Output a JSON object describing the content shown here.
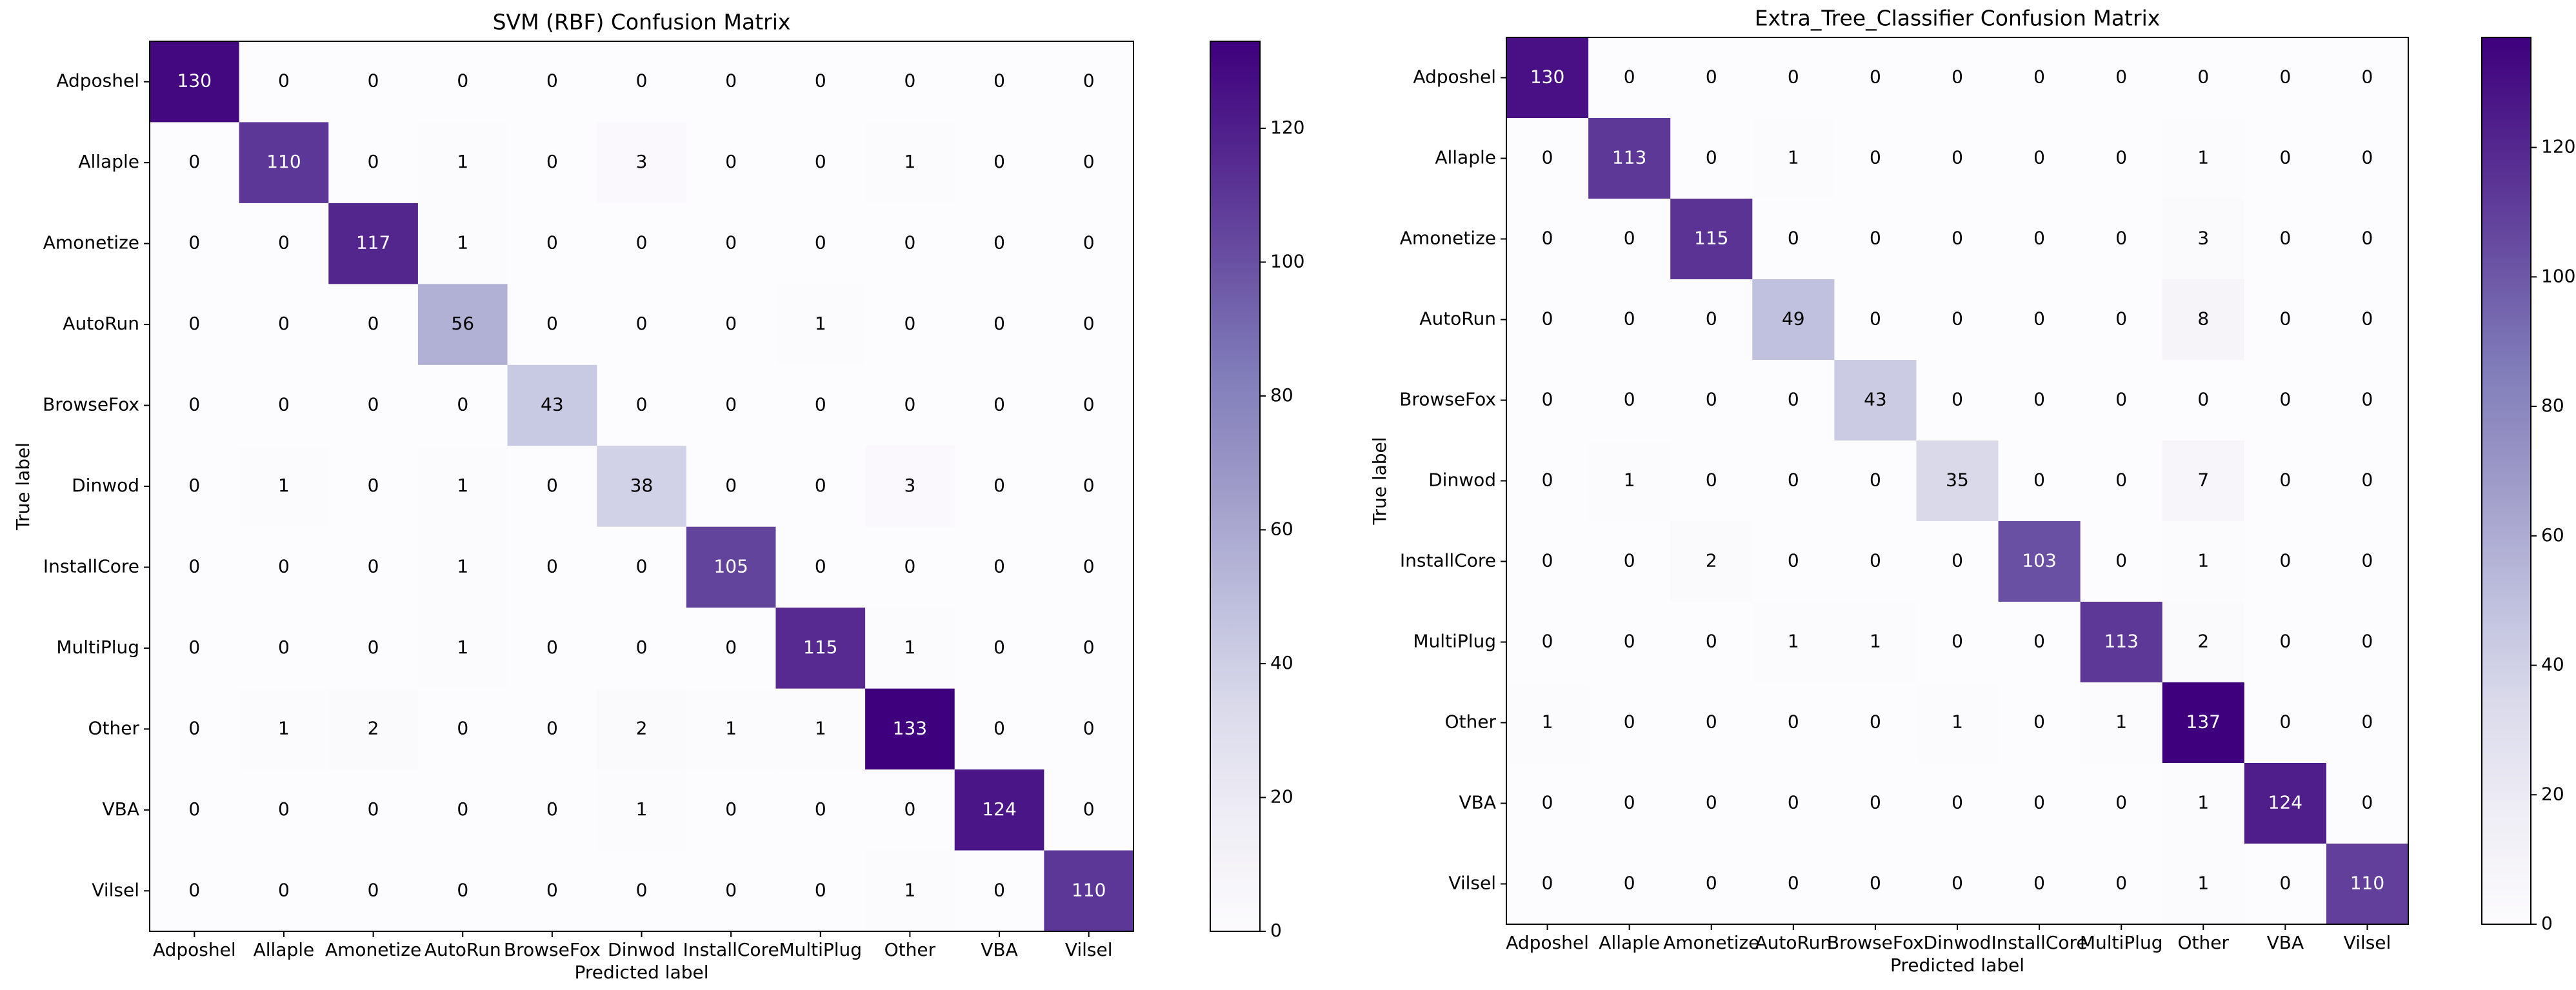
{
  "chart_data": [
    {
      "type": "heatmap",
      "title": "SVM (RBF) Confusion Matrix",
      "xlabel": "Predicted label",
      "ylabel": "True label",
      "x_categories": [
        "Adposhel",
        "Allaple",
        "Amonetize",
        "AutoRun",
        "BrowseFox",
        "Dinwod",
        "InstallCore",
        "MultiPlug",
        "Other",
        "VBA",
        "Vilsel"
      ],
      "y_categories": [
        "Adposhel",
        "Allaple",
        "Amonetize",
        "AutoRun",
        "BrowseFox",
        "Dinwod",
        "InstallCore",
        "MultiPlug",
        "Other",
        "VBA",
        "Vilsel"
      ],
      "values": [
        [
          130,
          0,
          0,
          0,
          0,
          0,
          0,
          0,
          0,
          0,
          0
        ],
        [
          0,
          110,
          0,
          1,
          0,
          3,
          0,
          0,
          1,
          0,
          0
        ],
        [
          0,
          0,
          117,
          1,
          0,
          0,
          0,
          0,
          0,
          0,
          0
        ],
        [
          0,
          0,
          0,
          56,
          0,
          0,
          0,
          1,
          0,
          0,
          0
        ],
        [
          0,
          0,
          0,
          0,
          43,
          0,
          0,
          0,
          0,
          0,
          0
        ],
        [
          0,
          1,
          0,
          1,
          0,
          38,
          0,
          0,
          3,
          0,
          0
        ],
        [
          0,
          0,
          0,
          1,
          0,
          0,
          105,
          0,
          0,
          0,
          0
        ],
        [
          0,
          0,
          0,
          1,
          0,
          0,
          0,
          115,
          1,
          0,
          0
        ],
        [
          0,
          1,
          2,
          0,
          0,
          2,
          1,
          1,
          133,
          0,
          0
        ],
        [
          0,
          0,
          0,
          0,
          0,
          1,
          0,
          0,
          0,
          124,
          0
        ],
        [
          0,
          0,
          0,
          0,
          0,
          0,
          0,
          0,
          1,
          0,
          110
        ]
      ],
      "colormap": "Purples",
      "zlim": [
        0,
        133
      ],
      "zticks": [
        0,
        20,
        40,
        60,
        80,
        100,
        120
      ]
    },
    {
      "type": "heatmap",
      "title": "Extra_Tree_Classifier Confusion Matrix",
      "xlabel": "Predicted label",
      "ylabel": "True label",
      "x_categories": [
        "Adposhel",
        "Allaple",
        "Amonetize",
        "AutoRun",
        "BrowseFox",
        "Dinwod",
        "InstallCore",
        "MultiPlug",
        "Other",
        "VBA",
        "Vilsel"
      ],
      "y_categories": [
        "Adposhel",
        "Allaple",
        "Amonetize",
        "AutoRun",
        "BrowseFox",
        "Dinwod",
        "InstallCore",
        "MultiPlug",
        "Other",
        "VBA",
        "Vilsel"
      ],
      "values": [
        [
          130,
          0,
          0,
          0,
          0,
          0,
          0,
          0,
          0,
          0,
          0
        ],
        [
          0,
          113,
          0,
          1,
          0,
          0,
          0,
          0,
          1,
          0,
          0
        ],
        [
          0,
          0,
          115,
          0,
          0,
          0,
          0,
          0,
          3,
          0,
          0
        ],
        [
          0,
          0,
          0,
          49,
          0,
          0,
          0,
          0,
          8,
          0,
          0
        ],
        [
          0,
          0,
          0,
          0,
          43,
          0,
          0,
          0,
          0,
          0,
          0
        ],
        [
          0,
          1,
          0,
          0,
          0,
          35,
          0,
          0,
          7,
          0,
          0
        ],
        [
          0,
          0,
          2,
          0,
          0,
          0,
          103,
          0,
          1,
          0,
          0
        ],
        [
          0,
          0,
          0,
          1,
          1,
          0,
          0,
          113,
          2,
          0,
          0
        ],
        [
          1,
          0,
          0,
          0,
          0,
          1,
          0,
          1,
          137,
          0,
          0
        ],
        [
          0,
          0,
          0,
          0,
          0,
          0,
          0,
          0,
          1,
          124,
          0
        ],
        [
          0,
          0,
          0,
          0,
          0,
          0,
          0,
          0,
          1,
          0,
          110
        ]
      ],
      "colormap": "Purples",
      "zlim": [
        0,
        137
      ],
      "zticks": [
        0,
        20,
        40,
        60,
        80,
        100,
        120
      ]
    }
  ]
}
